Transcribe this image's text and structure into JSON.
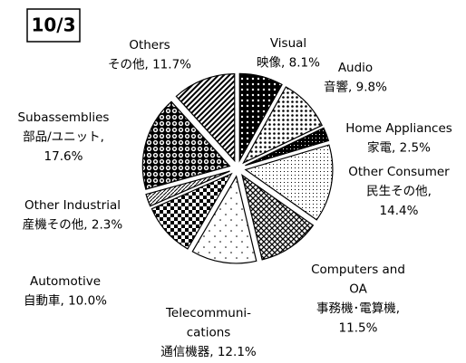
{
  "chart_data": {
    "type": "pie",
    "title": "10/3",
    "categories": [
      "Visual",
      "Audio",
      "Home Appliances",
      "Other Consumer",
      "Computers and OA",
      "Telecommunications",
      "Automotive",
      "Other Industrial",
      "Subassemblies",
      "Others"
    ],
    "values": [
      8.1,
      9.8,
      2.5,
      14.4,
      11.5,
      12.1,
      10.0,
      2.3,
      17.6,
      11.7
    ],
    "labels": [
      [
        "Visual",
        "映像, 8.1%"
      ],
      [
        "Audio",
        "音響, 9.8%"
      ],
      [
        "Home Appliances",
        "家電, 2.5%"
      ],
      [
        "Other Consumer",
        "民生その他,",
        "14.4%"
      ],
      [
        "Computers and",
        "OA",
        "事務機･電算機,",
        "11.5%"
      ],
      [
        "Telecommuni-",
        "cations",
        "通信機器, 12.1%"
      ],
      [
        "Automotive",
        "自動車, 10.0%"
      ],
      [
        "Other Industrial",
        "産機その他, 2.3%"
      ],
      [
        "Subassemblies",
        "部品/ユニット,",
        "17.6%"
      ],
      [
        "Others",
        "その他, 11.7%"
      ]
    ]
  }
}
